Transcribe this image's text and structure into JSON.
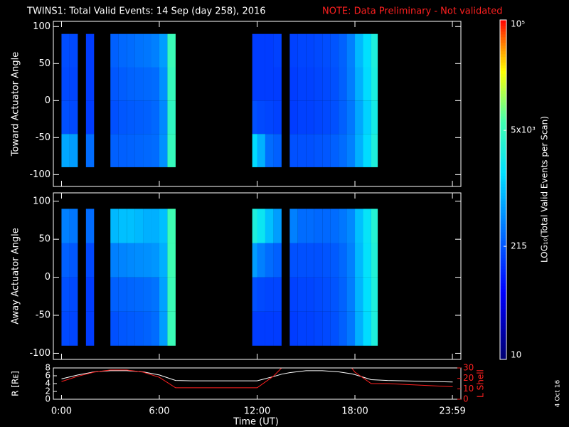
{
  "chart_data": {
    "type": "spectrogram",
    "title": "TWINS1: Total Valid Events: 14 Sep (day 258), 2016",
    "note": "NOTE: Data Preliminary - Not validated",
    "xlabel": "Time (UT)",
    "xlim": [
      -0.5,
      24.5
    ],
    "xticks": [
      {
        "value": 0,
        "label": "0:00"
      },
      {
        "value": 6,
        "label": "6:00"
      },
      {
        "value": 12,
        "label": "12:00"
      },
      {
        "value": 18,
        "label": "18:00"
      },
      {
        "value": 23.98,
        "label": "23:59"
      }
    ],
    "time_bins": [
      [
        0,
        0.5
      ],
      [
        0.5,
        1
      ],
      [
        1.5,
        2
      ],
      [
        3,
        3.5
      ],
      [
        3.5,
        4
      ],
      [
        4,
        4.5
      ],
      [
        4.5,
        5
      ],
      [
        5,
        5.5
      ],
      [
        5.5,
        6
      ],
      [
        6,
        6.5
      ],
      [
        6.5,
        7
      ],
      [
        11.7,
        12
      ],
      [
        12,
        12.5
      ],
      [
        12.5,
        13
      ],
      [
        13,
        13.5
      ],
      [
        14,
        14.5
      ],
      [
        14.5,
        15
      ],
      [
        15,
        15.5
      ],
      [
        15.5,
        16
      ],
      [
        16,
        16.5
      ],
      [
        16.5,
        17
      ],
      [
        17,
        17.5
      ],
      [
        17.5,
        18
      ],
      [
        18,
        18.5
      ],
      [
        18.5,
        19
      ],
      [
        19,
        19.4
      ]
    ],
    "angle_bins": [
      [
        -90,
        -45
      ],
      [
        -45,
        0
      ],
      [
        0,
        45
      ],
      [
        45,
        90
      ]
    ],
    "panels": [
      {
        "ylabel": "Toward Actuator Angle",
        "ylim": [
          -116,
          107
        ],
        "yticks": [
          -100,
          -50,
          0,
          50,
          100
        ],
        "z": [
          [
            700,
            200,
            180,
            190
          ],
          [
            600,
            180,
            170,
            180
          ],
          [
            300,
            150,
            150,
            150
          ],
          [
            250,
            200,
            220,
            250
          ],
          [
            250,
            220,
            240,
            280
          ],
          [
            260,
            230,
            260,
            300
          ],
          [
            270,
            240,
            270,
            330
          ],
          [
            280,
            250,
            280,
            350
          ],
          [
            300,
            280,
            300,
            400
          ],
          [
            500,
            450,
            500,
            600
          ],
          [
            5000,
            4500,
            5000,
            5500
          ],
          [
            1500,
            200,
            150,
            150
          ],
          [
            800,
            180,
            150,
            150
          ],
          [
            300,
            170,
            150,
            150
          ],
          [
            250,
            160,
            150,
            160
          ],
          [
            200,
            150,
            150,
            160
          ],
          [
            200,
            160,
            160,
            170
          ],
          [
            200,
            160,
            160,
            170
          ],
          [
            210,
            170,
            170,
            180
          ],
          [
            220,
            180,
            180,
            190
          ],
          [
            250,
            200,
            200,
            210
          ],
          [
            300,
            250,
            250,
            260
          ],
          [
            400,
            350,
            380,
            400
          ],
          [
            800,
            700,
            800,
            900
          ],
          [
            1500,
            1300,
            1500,
            1600
          ],
          [
            3000,
            2500,
            2800,
            3000
          ]
        ]
      },
      {
        "ylabel": "Away Actuator Angle",
        "ylim": [
          -108,
          111
        ],
        "yticks": [
          -100,
          -50,
          0,
          50,
          100
        ],
        "z": [
          [
            180,
            200,
            250,
            400
          ],
          [
            170,
            180,
            220,
            350
          ],
          [
            150,
            150,
            180,
            300
          ],
          [
            200,
            250,
            400,
            900
          ],
          [
            220,
            260,
            420,
            1000
          ],
          [
            230,
            270,
            450,
            1000
          ],
          [
            240,
            280,
            480,
            900
          ],
          [
            260,
            300,
            500,
            800
          ],
          [
            300,
            330,
            550,
            800
          ],
          [
            600,
            650,
            800,
            1000
          ],
          [
            5500,
            5500,
            6000,
            6000
          ],
          [
            150,
            200,
            600,
            3000
          ],
          [
            150,
            180,
            400,
            2000
          ],
          [
            150,
            170,
            300,
            1000
          ],
          [
            150,
            170,
            250,
            600
          ],
          [
            150,
            160,
            200,
            400
          ],
          [
            160,
            170,
            200,
            300
          ],
          [
            160,
            170,
            200,
            300
          ],
          [
            170,
            180,
            200,
            280
          ],
          [
            180,
            190,
            210,
            280
          ],
          [
            200,
            210,
            230,
            300
          ],
          [
            250,
            260,
            280,
            350
          ],
          [
            350,
            380,
            400,
            450
          ],
          [
            800,
            850,
            900,
            1000
          ],
          [
            1500,
            1600,
            1700,
            1800
          ],
          [
            3000,
            3000,
            3200,
            3500
          ]
        ]
      }
    ],
    "colorbar": {
      "label": "LOG₁₀(Total Valid Events per Scan)",
      "scale": "log",
      "clim": [
        10,
        100000
      ],
      "ticks": [
        10,
        215,
        {
          "value": 5000,
          "label": "5x10³"
        },
        {
          "value": 100000,
          "label": "10⁵"
        }
      ]
    },
    "lines": {
      "type": "line",
      "ylabel": "R [Rᴇ]",
      "y2label": "L Shell",
      "ylim": [
        0,
        8
      ],
      "yticks": [
        0,
        2,
        4,
        6,
        8
      ],
      "y2lim": [
        0,
        30
      ],
      "y2ticks": [
        0,
        10,
        20,
        30
      ],
      "x": [
        0,
        1,
        2,
        3,
        4,
        5,
        6,
        7,
        8,
        12,
        13,
        13.5,
        14,
        15,
        16,
        17,
        17.8,
        18,
        19,
        20,
        24
      ],
      "series": [
        {
          "color": "#ffffff",
          "values": [
            5.2,
            6.2,
            7,
            7.3,
            7.3,
            7,
            6.2,
            4.8,
            4.7,
            4.7,
            5.8,
            6.4,
            6.8,
            7.3,
            7.3,
            7,
            6.5,
            6.3,
            5,
            4.8,
            4.4
          ]
        },
        {
          "color": "#ff2020",
          "axis": "y2",
          "values": [
            17,
            22,
            26,
            28,
            28,
            26,
            21,
            11,
            11,
            11,
            22,
            30,
            null,
            null,
            null,
            null,
            30,
            26,
            15,
            15,
            12
          ]
        }
      ]
    },
    "footer": "4 Oct 16"
  }
}
